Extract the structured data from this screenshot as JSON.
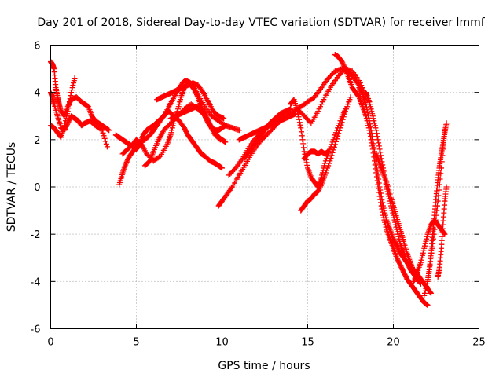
{
  "chart_data": {
    "type": "scatter",
    "title": "Day 201 of 2018, Sidereal Day-to-day VTEC variation (SDTVAR) for receiver lmmf",
    "xlabel": "GPS time / hours",
    "ylabel": "SDTVAR / TECUs",
    "xlim": [
      0,
      25
    ],
    "ylim": [
      -6,
      6
    ],
    "xticks": [
      0,
      5,
      10,
      15,
      20,
      25
    ],
    "yticks": [
      -6,
      -4,
      -2,
      0,
      2,
      4,
      6
    ],
    "grid": true,
    "marker": "plus",
    "color": "#ff0000",
    "traces": [
      {
        "x": [
          0.0,
          0.1,
          0.2,
          0.3,
          0.4,
          0.5,
          0.6,
          0.8,
          1.0,
          1.2,
          1.5,
          1.8,
          2.0,
          2.2,
          2.4,
          2.6,
          2.8,
          3.0,
          3.2,
          3.4
        ],
        "y": [
          5.3,
          5.2,
          5.0,
          4.2,
          3.8,
          3.5,
          3.2,
          3.0,
          3.4,
          3.7,
          3.8,
          3.6,
          3.5,
          3.4,
          3.0,
          2.8,
          2.7,
          2.6,
          2.5,
          2.4
        ]
      },
      {
        "x": [
          0.0,
          0.1,
          0.2,
          0.4,
          0.6,
          0.8,
          1.0,
          1.2,
          1.4,
          1.6,
          1.8,
          2.0,
          2.3,
          2.6,
          3.0,
          3.3
        ],
        "y": [
          4.0,
          3.8,
          3.5,
          3.0,
          2.5,
          2.4,
          2.7,
          3.0,
          2.9,
          2.8,
          2.6,
          2.7,
          2.8,
          2.6,
          2.4,
          1.7
        ]
      },
      {
        "x": [
          0.0,
          0.2,
          0.4,
          0.6,
          0.8,
          1.0,
          1.2,
          1.4
        ],
        "y": [
          2.6,
          2.5,
          2.3,
          2.1,
          2.6,
          3.2,
          4.0,
          4.6
        ]
      },
      {
        "x": [
          3.8,
          4.0,
          4.2,
          4.4,
          4.6,
          4.8,
          5.0,
          5.2,
          5.4,
          5.6,
          5.8,
          6.0,
          6.3,
          6.6,
          6.9,
          7.2,
          7.5,
          7.8,
          8.0,
          8.2,
          8.4,
          8.6,
          8.8,
          9.0,
          9.3,
          9.6,
          9.8,
          10.0
        ],
        "y": [
          2.2,
          2.1,
          2.0,
          1.9,
          1.8,
          1.7,
          1.6,
          1.8,
          2.2,
          2.4,
          2.5,
          2.6,
          2.8,
          3.0,
          3.2,
          3.0,
          2.8,
          2.5,
          2.2,
          2.0,
          1.8,
          1.6,
          1.4,
          1.3,
          1.1,
          1.0,
          0.9,
          0.8
        ]
      },
      {
        "x": [
          4.0,
          4.2,
          4.4,
          4.6,
          4.8,
          5.0,
          5.2,
          5.5,
          5.8,
          6.0,
          6.3,
          6.6,
          6.9,
          7.2,
          7.5,
          7.8,
          8.0,
          8.3,
          8.6,
          9.0,
          9.4,
          9.8,
          10.2,
          10.6,
          11.0
        ],
        "y": [
          0.1,
          0.6,
          1.0,
          1.3,
          1.5,
          1.7,
          1.9,
          2.0,
          2.2,
          2.4,
          2.7,
          3.0,
          3.4,
          3.8,
          4.2,
          4.5,
          4.5,
          4.3,
          3.9,
          3.4,
          3.0,
          2.8,
          2.6,
          2.5,
          2.4
        ]
      },
      {
        "x": [
          4.2,
          4.5,
          4.8,
          5.0,
          5.3,
          5.6,
          6.0,
          6.4,
          6.8,
          7.0,
          7.2,
          7.4,
          7.6,
          7.8,
          8.0,
          8.2,
          8.4,
          8.6,
          8.8,
          9.0,
          9.2,
          9.4,
          9.6,
          9.8,
          10.0,
          10.2
        ],
        "y": [
          1.4,
          1.6,
          1.8,
          2.0,
          1.8,
          1.4,
          1.1,
          1.3,
          1.8,
          2.2,
          2.8,
          3.2,
          3.8,
          4.2,
          4.4,
          4.3,
          4.1,
          3.8,
          3.4,
          3.0,
          2.7,
          2.5,
          2.4,
          2.4,
          2.5,
          2.6
        ]
      },
      {
        "x": [
          5.5,
          5.8,
          6.0,
          6.3,
          6.6,
          7.0,
          7.4,
          7.8,
          8.2,
          8.6,
          9.0,
          9.3,
          9.6,
          9.9
        ],
        "y": [
          0.9,
          1.1,
          1.5,
          2.0,
          2.4,
          2.7,
          3.0,
          3.3,
          3.5,
          3.3,
          3.0,
          2.6,
          2.2,
          2.0
        ]
      },
      {
        "x": [
          6.2,
          6.5,
          6.8,
          7.1,
          7.4,
          7.7,
          8.0,
          8.3,
          8.6,
          8.9,
          9.2,
          9.5,
          9.8,
          10.1
        ],
        "y": [
          3.7,
          3.8,
          3.9,
          4.0,
          4.1,
          4.2,
          4.3,
          4.4,
          4.3,
          4.0,
          3.6,
          3.2,
          3.0,
          2.9
        ]
      },
      {
        "x": [
          7.0,
          7.3,
          7.6,
          7.9,
          8.2,
          8.5,
          8.8,
          9.0,
          9.2,
          9.4,
          9.6,
          9.8,
          10.0,
          10.2
        ],
        "y": [
          2.9,
          3.0,
          3.1,
          3.2,
          3.3,
          3.4,
          3.3,
          3.1,
          2.8,
          2.5,
          2.3,
          2.1,
          2.0,
          1.9
        ]
      },
      {
        "x": [
          9.8,
          10.0,
          10.3,
          10.6,
          11.0,
          11.4,
          11.8,
          12.2,
          12.6,
          13.0,
          13.4,
          13.8,
          14.2,
          14.6,
          15.0,
          15.4,
          15.8,
          16.2,
          16.6,
          17.0,
          17.3,
          17.6,
          17.9,
          18.2
        ],
        "y": [
          -0.8,
          -0.6,
          -0.3,
          0.0,
          0.5,
          1.0,
          1.5,
          1.9,
          2.2,
          2.5,
          2.8,
          3.0,
          3.2,
          3.4,
          3.6,
          3.8,
          4.2,
          4.6,
          4.9,
          5.0,
          4.9,
          4.7,
          4.4,
          4.1
        ]
      },
      {
        "x": [
          10.4,
          10.8,
          11.2,
          11.6,
          12.0,
          12.4,
          12.8,
          13.2,
          13.6,
          14.0,
          14.4,
          14.8,
          15.2,
          15.6,
          16.0,
          16.4,
          16.8,
          17.2,
          17.6,
          18.0,
          18.4
        ],
        "y": [
          0.5,
          0.8,
          1.2,
          1.7,
          2.1,
          2.4,
          2.7,
          2.9,
          3.0,
          3.1,
          3.3,
          3.0,
          2.7,
          3.2,
          3.8,
          4.3,
          4.7,
          5.0,
          4.9,
          4.5,
          3.9
        ]
      },
      {
        "x": [
          11.0,
          11.3,
          11.6,
          11.9,
          12.2,
          12.5,
          12.8,
          13.1,
          13.4,
          13.7,
          14.0,
          14.3
        ],
        "y": [
          2.0,
          2.1,
          2.2,
          2.3,
          2.4,
          2.5,
          2.6,
          2.7,
          2.8,
          2.9,
          3.0,
          3.1
        ]
      },
      {
        "x": [
          11.3,
          11.6,
          11.9,
          12.2,
          12.5,
          12.8,
          13.1,
          13.4,
          13.7,
          14.0
        ],
        "y": [
          1.2,
          1.5,
          1.8,
          2.1,
          2.4,
          2.7,
          2.9,
          3.1,
          3.2,
          3.3
        ]
      },
      {
        "x": [
          14.0,
          14.2,
          14.4,
          14.6,
          14.8,
          15.0,
          15.2,
          15.4,
          15.6,
          15.8,
          16.0,
          16.3,
          16.6,
          16.9,
          17.2
        ],
        "y": [
          3.5,
          3.7,
          3.2,
          2.5,
          1.5,
          0.8,
          0.4,
          0.2,
          0.0,
          0.4,
          1.0,
          1.6,
          2.2,
          2.8,
          3.3
        ]
      },
      {
        "x": [
          14.6,
          14.8,
          15.0,
          15.2,
          15.4,
          15.6,
          15.8,
          16.0,
          16.3,
          16.6,
          16.9,
          17.2,
          17.5
        ],
        "y": [
          -1.0,
          -0.8,
          -0.6,
          -0.5,
          -0.3,
          -0.2,
          0.1,
          0.5,
          1.1,
          1.8,
          2.5,
          3.2,
          3.8
        ]
      },
      {
        "x": [
          14.8,
          15.0,
          15.2,
          15.4,
          15.6,
          15.8,
          16.0,
          16.2
        ],
        "y": [
          1.2,
          1.4,
          1.5,
          1.5,
          1.4,
          1.5,
          1.4,
          1.5
        ]
      },
      {
        "x": [
          16.6,
          16.8,
          17.0,
          17.2,
          17.4,
          17.6,
          17.8,
          18.0,
          18.2,
          18.4,
          18.6,
          18.8,
          19.0,
          19.2,
          19.4,
          19.6,
          19.8,
          20.0,
          20.2,
          20.4,
          20.6,
          20.8,
          21.0,
          21.2,
          21.4,
          21.6,
          21.8,
          22.0
        ],
        "y": [
          5.6,
          5.5,
          5.3,
          5.0,
          4.6,
          4.2,
          4.0,
          3.8,
          3.4,
          3.0,
          2.4,
          1.6,
          0.6,
          -0.4,
          -1.2,
          -1.8,
          -2.2,
          -2.6,
          -3.0,
          -3.3,
          -3.6,
          -3.9,
          -4.1,
          -4.3,
          -4.5,
          -4.7,
          -4.9,
          -5.0
        ]
      },
      {
        "x": [
          18.0,
          18.2,
          18.4,
          18.6,
          18.8,
          19.0,
          19.2,
          19.4,
          19.6,
          19.8,
          20.0,
          20.2,
          20.4,
          20.6,
          20.8,
          21.0,
          21.2,
          21.4,
          21.6,
          21.8,
          22.0,
          22.2
        ],
        "y": [
          4.2,
          3.9,
          3.5,
          2.8,
          2.0,
          1.0,
          0.0,
          -0.8,
          -1.4,
          -1.8,
          -2.2,
          -2.5,
          -2.8,
          -3.0,
          -3.2,
          -3.4,
          -3.5,
          -3.7,
          -3.9,
          -4.1,
          -4.3,
          -4.5
        ]
      },
      {
        "x": [
          18.4,
          18.6,
          18.8,
          19.0,
          19.2,
          19.4,
          19.6,
          19.8,
          20.0,
          20.2,
          20.4,
          20.6,
          20.8,
          21.0,
          21.2,
          21.4,
          21.6
        ],
        "y": [
          4.0,
          3.6,
          3.0,
          2.4,
          1.6,
          0.8,
          0.0,
          -0.6,
          -1.2,
          -1.8,
          -2.4,
          -2.8,
          -3.2,
          -3.5,
          -3.7,
          -3.9,
          -4.0
        ]
      },
      {
        "x": [
          19.0,
          19.2,
          19.4,
          19.6,
          19.8,
          20.0,
          20.2,
          20.4,
          20.6,
          20.8,
          21.0,
          21.2,
          21.4,
          21.6
        ],
        "y": [
          1.4,
          1.0,
          0.6,
          0.2,
          -0.3,
          -0.8,
          -1.3,
          -1.8,
          -2.3,
          -2.8,
          -3.2,
          -3.6,
          -3.9,
          -4.1
        ]
      },
      {
        "x": [
          21.2,
          21.4,
          21.6,
          21.8,
          22.0,
          22.2,
          22.4,
          22.6,
          22.8,
          23.0
        ],
        "y": [
          -4.0,
          -3.6,
          -3.2,
          -2.6,
          -2.0,
          -1.6,
          -1.4,
          -1.6,
          -1.8,
          -2.0
        ]
      },
      {
        "x": [
          21.8,
          22.0,
          22.2,
          22.4,
          22.6,
          22.8,
          23.0
        ],
        "y": [
          -4.6,
          -4.0,
          -3.0,
          -1.8,
          -0.6,
          0.8,
          2.4
        ]
      },
      {
        "x": [
          22.0,
          22.1,
          22.2,
          22.3,
          22.4,
          22.5,
          22.6,
          22.7,
          22.8,
          22.9,
          23.0,
          23.1
        ],
        "y": [
          -4.0,
          -3.5,
          -2.8,
          -2.0,
          -1.2,
          -0.4,
          0.3,
          0.9,
          1.4,
          1.8,
          2.3,
          2.7
        ]
      },
      {
        "x": [
          22.6,
          22.7,
          22.8,
          22.9,
          23.0,
          23.1
        ],
        "y": [
          -3.8,
          -3.4,
          -2.6,
          -1.6,
          -0.6,
          0.0
        ]
      }
    ]
  }
}
